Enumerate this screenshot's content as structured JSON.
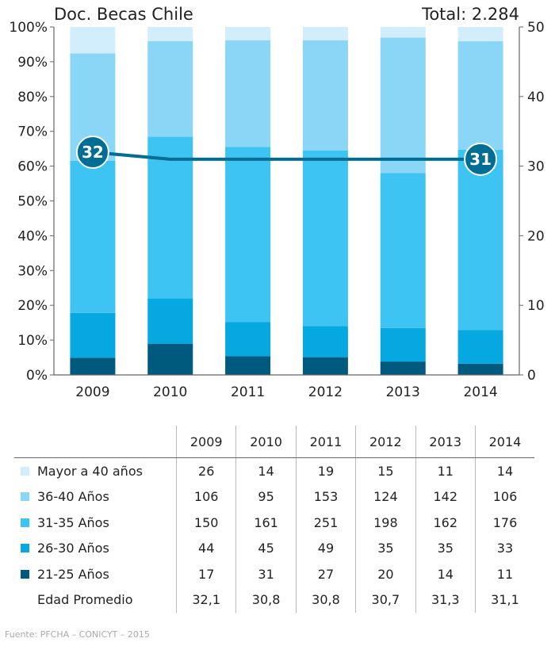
{
  "header": {
    "title": "Doc. Becas Chile",
    "total": "Total: 2.284"
  },
  "source": "Fuente: PFCHA – CONICYT – 2015",
  "colors": {
    "mayor40": "#d2edfc",
    "a36_40": "#8ad6f7",
    "a31_35": "#3ec4f2",
    "a26_30": "#06a8e2",
    "a21_25": "#005a7e",
    "line": "#006d94",
    "grid": "#cccccc"
  },
  "chart_data": {
    "type": "bar",
    "stacked": true,
    "normalized": true,
    "categories": [
      "2009",
      "2010",
      "2011",
      "2012",
      "2013",
      "2014"
    ],
    "series": [
      {
        "name": "21-25 Años",
        "color_key": "a21_25",
        "values": [
          17,
          31,
          27,
          20,
          14,
          11
        ]
      },
      {
        "name": "26-30 Años",
        "color_key": "a26_30",
        "values": [
          44,
          45,
          49,
          35,
          35,
          33
        ]
      },
      {
        "name": "31-35 Años",
        "color_key": "a31_35",
        "values": [
          150,
          161,
          251,
          198,
          162,
          176
        ]
      },
      {
        "name": "36-40 Años",
        "color_key": "a36_40",
        "values": [
          106,
          95,
          153,
          124,
          142,
          106
        ]
      },
      {
        "name": "Mayor a 40 años",
        "color_key": "mayor40",
        "values": [
          26,
          14,
          19,
          15,
          11,
          14
        ]
      }
    ],
    "line_series": {
      "name": "Edad Promedio",
      "values": [
        32,
        31,
        31,
        31,
        31,
        31
      ],
      "labels": [
        {
          "index": 0,
          "text": "32"
        },
        {
          "index": 5,
          "text": "31"
        }
      ]
    },
    "y_left": {
      "ticks": [
        "0%",
        "10%",
        "20%",
        "30%",
        "40%",
        "50%",
        "60%",
        "70%",
        "80%",
        "90%",
        "100%"
      ],
      "ylim": [
        0,
        100
      ]
    },
    "y_right": {
      "ticks": [
        "0",
        "10",
        "20",
        "30",
        "40",
        "50"
      ],
      "ylim": [
        0,
        50
      ]
    },
    "grid": false
  },
  "table": {
    "years": [
      "2009",
      "2010",
      "2011",
      "2012",
      "2013",
      "2014"
    ],
    "rows": [
      {
        "label": "Mayor a 40 años",
        "color_key": "mayor40",
        "values": [
          "26",
          "14",
          "19",
          "15",
          "11",
          "14"
        ]
      },
      {
        "label": "36-40 Años",
        "color_key": "a36_40",
        "values": [
          "106",
          "95",
          "153",
          "124",
          "142",
          "106"
        ]
      },
      {
        "label": "31-35 Años",
        "color_key": "a31_35",
        "values": [
          "150",
          "161",
          "251",
          "198",
          "162",
          "176"
        ]
      },
      {
        "label": "26-30 Años",
        "color_key": "a26_30",
        "values": [
          "44",
          "45",
          "49",
          "35",
          "35",
          "33"
        ]
      },
      {
        "label": "21-25 Años",
        "color_key": "a21_25",
        "values": [
          "17",
          "31",
          "27",
          "20",
          "14",
          "11"
        ]
      },
      {
        "label": "Edad Promedio",
        "color_key": "",
        "values": [
          "32,1",
          "30,8",
          "30,8",
          "30,7",
          "31,3",
          "31,1"
        ]
      }
    ]
  }
}
